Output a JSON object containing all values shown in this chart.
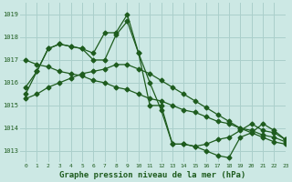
{
  "title": "Graphe pression niveau de la mer (hPa)",
  "bg_color": "#cce8e4",
  "grid_color": "#aacfcb",
  "line_color": "#1e5c1e",
  "xlim": [
    -0.5,
    23
  ],
  "ylim": [
    1012.5,
    1019.5
  ],
  "yticks": [
    1013,
    1014,
    1015,
    1016,
    1017,
    1018,
    1019
  ],
  "xticks": [
    0,
    1,
    2,
    3,
    4,
    5,
    6,
    7,
    8,
    9,
    10,
    11,
    12,
    13,
    14,
    15,
    16,
    17,
    18,
    19,
    20,
    21,
    22,
    23
  ],
  "series": [
    {
      "x": [
        0,
        1,
        2,
        3,
        4,
        5,
        6,
        7,
        8,
        9,
        10,
        11,
        12,
        13,
        14,
        15,
        16,
        17,
        18,
        19,
        20,
        21,
        22,
        23
      ],
      "y": [
        1015.5,
        1016.5,
        1017.5,
        1017.7,
        1017.6,
        1017.5,
        1017.3,
        1018.2,
        1018.2,
        1019.0,
        1017.3,
        1016.0,
        1014.8,
        1013.3,
        1013.3,
        1013.2,
        1013.0,
        1012.8,
        1012.7,
        1013.6,
        1013.8,
        1014.2,
        1013.9,
        1013.5
      ]
    },
    {
      "x": [
        0,
        1,
        2,
        3,
        4,
        5,
        6,
        7,
        8,
        9,
        10,
        11,
        12,
        13,
        14,
        15,
        16,
        17,
        18,
        19,
        20,
        21,
        22,
        23
      ],
      "y": [
        1015.8,
        1016.5,
        1017.5,
        1017.7,
        1017.6,
        1017.5,
        1017.0,
        1017.0,
        1018.1,
        1018.7,
        1017.3,
        1015.0,
        1015.0,
        1013.3,
        1013.3,
        1013.2,
        1013.3,
        1013.5,
        1013.6,
        1013.9,
        1014.2,
        1013.9,
        1013.8,
        1013.5
      ]
    },
    {
      "x": [
        0,
        1,
        2,
        3,
        4,
        5,
        6,
        7,
        8,
        9,
        10,
        11,
        12,
        13,
        14,
        15,
        16,
        17,
        18,
        19,
        20,
        21,
        22,
        23
      ],
      "y": [
        1017.0,
        1016.8,
        1016.7,
        1016.5,
        1016.4,
        1016.3,
        1016.1,
        1016.0,
        1015.8,
        1015.7,
        1015.5,
        1015.3,
        1015.2,
        1015.0,
        1014.8,
        1014.7,
        1014.5,
        1014.3,
        1014.2,
        1014.0,
        1013.9,
        1013.7,
        1013.6,
        1013.4
      ]
    },
    {
      "x": [
        0,
        1,
        2,
        3,
        4,
        5,
        6,
        7,
        8,
        9,
        10,
        11,
        12,
        13,
        14,
        15,
        16,
        17,
        18,
        19,
        20,
        21,
        22,
        23
      ],
      "y": [
        1015.3,
        1015.5,
        1015.8,
        1016.0,
        1016.2,
        1016.4,
        1016.5,
        1016.6,
        1016.8,
        1016.8,
        1016.6,
        1016.4,
        1016.1,
        1015.8,
        1015.5,
        1015.2,
        1014.9,
        1014.6,
        1014.3,
        1014.0,
        1013.8,
        1013.6,
        1013.4,
        1013.3
      ]
    }
  ],
  "marker": "D",
  "marker_size": 2.5,
  "line_width": 0.9
}
